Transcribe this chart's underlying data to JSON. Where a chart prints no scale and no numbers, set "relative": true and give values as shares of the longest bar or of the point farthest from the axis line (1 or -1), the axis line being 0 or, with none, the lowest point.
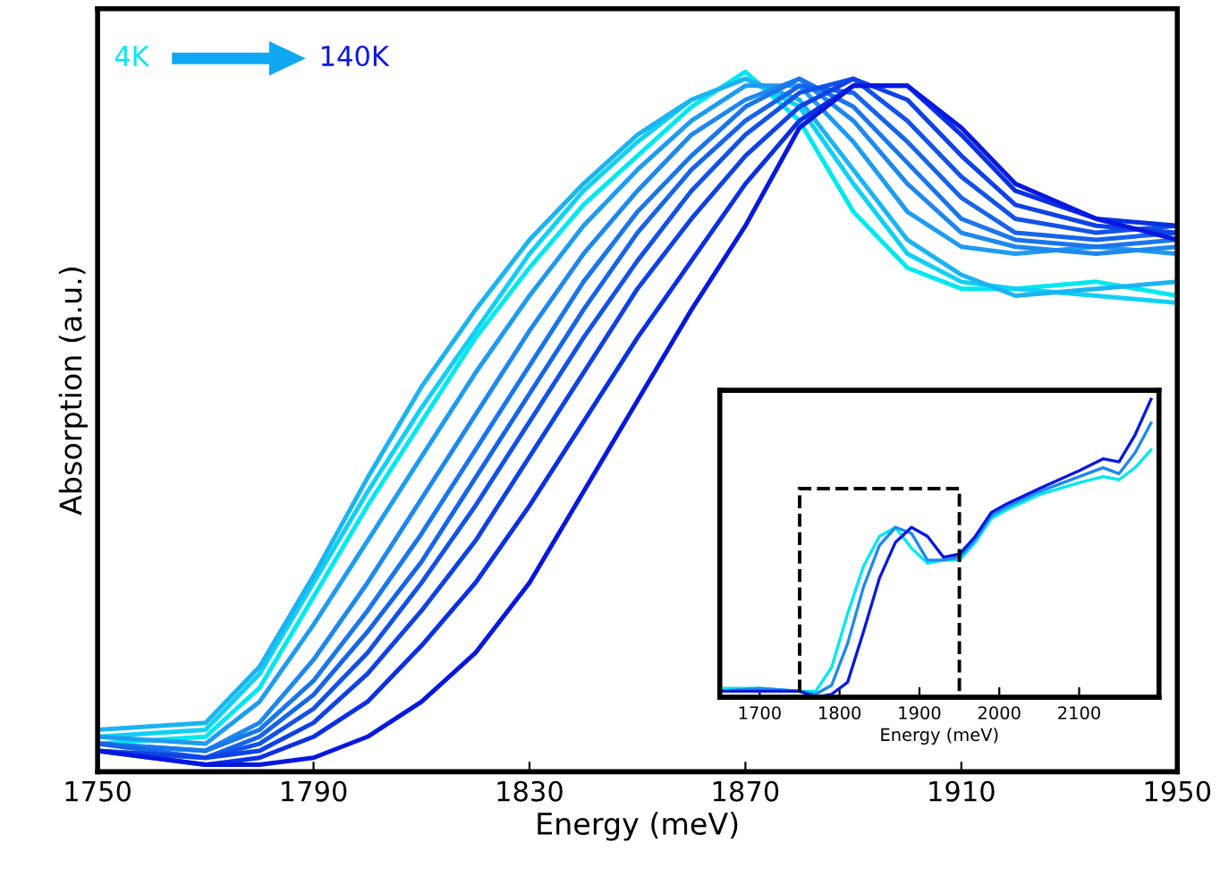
{
  "chart_data": [
    {
      "type": "line",
      "xlabel": "Energy (meV)",
      "ylabel": "Absorption (a.u.)",
      "relative": true,
      "tick_labels": "x",
      "grid": false,
      "legend": false,
      "annotations": [
        "4K",
        "140K"
      ],
      "x": [
        1750,
        1770,
        1780,
        1790,
        1800,
        1810,
        1820,
        1830,
        1840,
        1850,
        1860,
        1870,
        1880,
        1890,
        1900,
        1910,
        1920,
        1935,
        1950
      ],
      "xlim": [
        1750,
        1950
      ],
      "xticks": [
        1750,
        1790,
        1830,
        1870,
        1910,
        1950
      ],
      "series": [
        {
          "color": "#00e8f0",
          "values": [
            0.04,
            0.05,
            0.12,
            0.25,
            0.38,
            0.5,
            0.62,
            0.72,
            0.81,
            0.88,
            0.95,
            1.0,
            0.93,
            0.8,
            0.72,
            0.69,
            0.69,
            0.7,
            0.68
          ]
        },
        {
          "color": "#10d0f5",
          "values": [
            0.05,
            0.06,
            0.14,
            0.27,
            0.4,
            0.52,
            0.63,
            0.74,
            0.83,
            0.9,
            0.96,
            0.99,
            0.95,
            0.84,
            0.74,
            0.7,
            0.69,
            0.68,
            0.67
          ]
        },
        {
          "color": "#1ab4f2",
          "values": [
            0.06,
            0.07,
            0.15,
            0.28,
            0.42,
            0.55,
            0.66,
            0.76,
            0.84,
            0.91,
            0.96,
            0.99,
            0.96,
            0.86,
            0.76,
            0.71,
            0.68,
            0.69,
            0.7
          ]
        },
        {
          "color": "#1e9cf0",
          "values": [
            0.05,
            0.04,
            0.1,
            0.21,
            0.33,
            0.45,
            0.57,
            0.68,
            0.78,
            0.86,
            0.93,
            0.98,
            0.98,
            0.9,
            0.8,
            0.75,
            0.74,
            0.75,
            0.74
          ]
        },
        {
          "color": "#1e88ee",
          "values": [
            0.04,
            0.03,
            0.07,
            0.16,
            0.27,
            0.39,
            0.51,
            0.63,
            0.74,
            0.83,
            0.91,
            0.96,
            0.99,
            0.93,
            0.84,
            0.77,
            0.75,
            0.74,
            0.75
          ]
        },
        {
          "color": "#1a76ec",
          "values": [
            0.04,
            0.03,
            0.06,
            0.13,
            0.23,
            0.34,
            0.46,
            0.58,
            0.7,
            0.8,
            0.88,
            0.95,
            0.99,
            0.95,
            0.87,
            0.79,
            0.76,
            0.75,
            0.76
          ]
        },
        {
          "color": "#1664ea",
          "values": [
            0.04,
            0.02,
            0.05,
            0.11,
            0.2,
            0.3,
            0.42,
            0.54,
            0.66,
            0.77,
            0.86,
            0.93,
            0.98,
            0.97,
            0.9,
            0.82,
            0.77,
            0.76,
            0.77
          ]
        },
        {
          "color": "#1252e8",
          "values": [
            0.03,
            0.02,
            0.04,
            0.09,
            0.17,
            0.27,
            0.38,
            0.5,
            0.62,
            0.73,
            0.83,
            0.91,
            0.97,
            0.99,
            0.93,
            0.85,
            0.79,
            0.77,
            0.78
          ]
        },
        {
          "color": "#0e42e6",
          "values": [
            0.03,
            0.02,
            0.03,
            0.07,
            0.14,
            0.23,
            0.33,
            0.45,
            0.57,
            0.69,
            0.79,
            0.88,
            0.95,
            0.99,
            0.96,
            0.88,
            0.81,
            0.78,
            0.77
          ]
        },
        {
          "color": "#0a30e4",
          "values": [
            0.03,
            0.01,
            0.02,
            0.05,
            0.1,
            0.18,
            0.27,
            0.38,
            0.5,
            0.62,
            0.73,
            0.84,
            0.93,
            0.98,
            0.98,
            0.91,
            0.83,
            0.79,
            0.78
          ]
        },
        {
          "color": "#0618e0",
          "values": [
            0.03,
            0.01,
            0.01,
            0.02,
            0.05,
            0.1,
            0.17,
            0.27,
            0.4,
            0.53,
            0.66,
            0.78,
            0.92,
            0.98,
            0.98,
            0.92,
            0.84,
            0.79,
            0.76
          ]
        }
      ]
    },
    {
      "type": "line",
      "xlabel": "Energy (meV)",
      "relative": true,
      "tick_labels": "x",
      "grid": false,
      "legend": false,
      "x": [
        1650,
        1700,
        1750,
        1770,
        1790,
        1810,
        1830,
        1850,
        1870,
        1890,
        1910,
        1930,
        1950,
        1970,
        1990,
        2010,
        2050,
        2100,
        2130,
        2150,
        2170,
        2190
      ],
      "xlim": [
        1650,
        2200
      ],
      "xticks": [
        1700,
        1800,
        1900,
        2000,
        2100
      ],
      "series": [
        {
          "color": "#00e8f0",
          "values": [
            0.03,
            0.03,
            0.02,
            0.02,
            0.1,
            0.28,
            0.44,
            0.54,
            0.57,
            0.5,
            0.45,
            0.46,
            0.46,
            0.52,
            0.6,
            0.63,
            0.68,
            0.72,
            0.74,
            0.73,
            0.77,
            0.83
          ]
        },
        {
          "color": "#1e88ee",
          "values": [
            0.02,
            0.03,
            0.02,
            0.01,
            0.04,
            0.18,
            0.37,
            0.51,
            0.57,
            0.55,
            0.46,
            0.46,
            0.47,
            0.53,
            0.61,
            0.64,
            0.69,
            0.74,
            0.77,
            0.75,
            0.82,
            0.92
          ]
        },
        {
          "color": "#0618e0",
          "values": [
            0.02,
            0.02,
            0.02,
            0.0,
            0.01,
            0.05,
            0.22,
            0.4,
            0.52,
            0.57,
            0.54,
            0.47,
            0.48,
            0.54,
            0.62,
            0.65,
            0.7,
            0.76,
            0.8,
            0.79,
            0.88,
            1.0
          ]
        }
      ]
    }
  ]
}
